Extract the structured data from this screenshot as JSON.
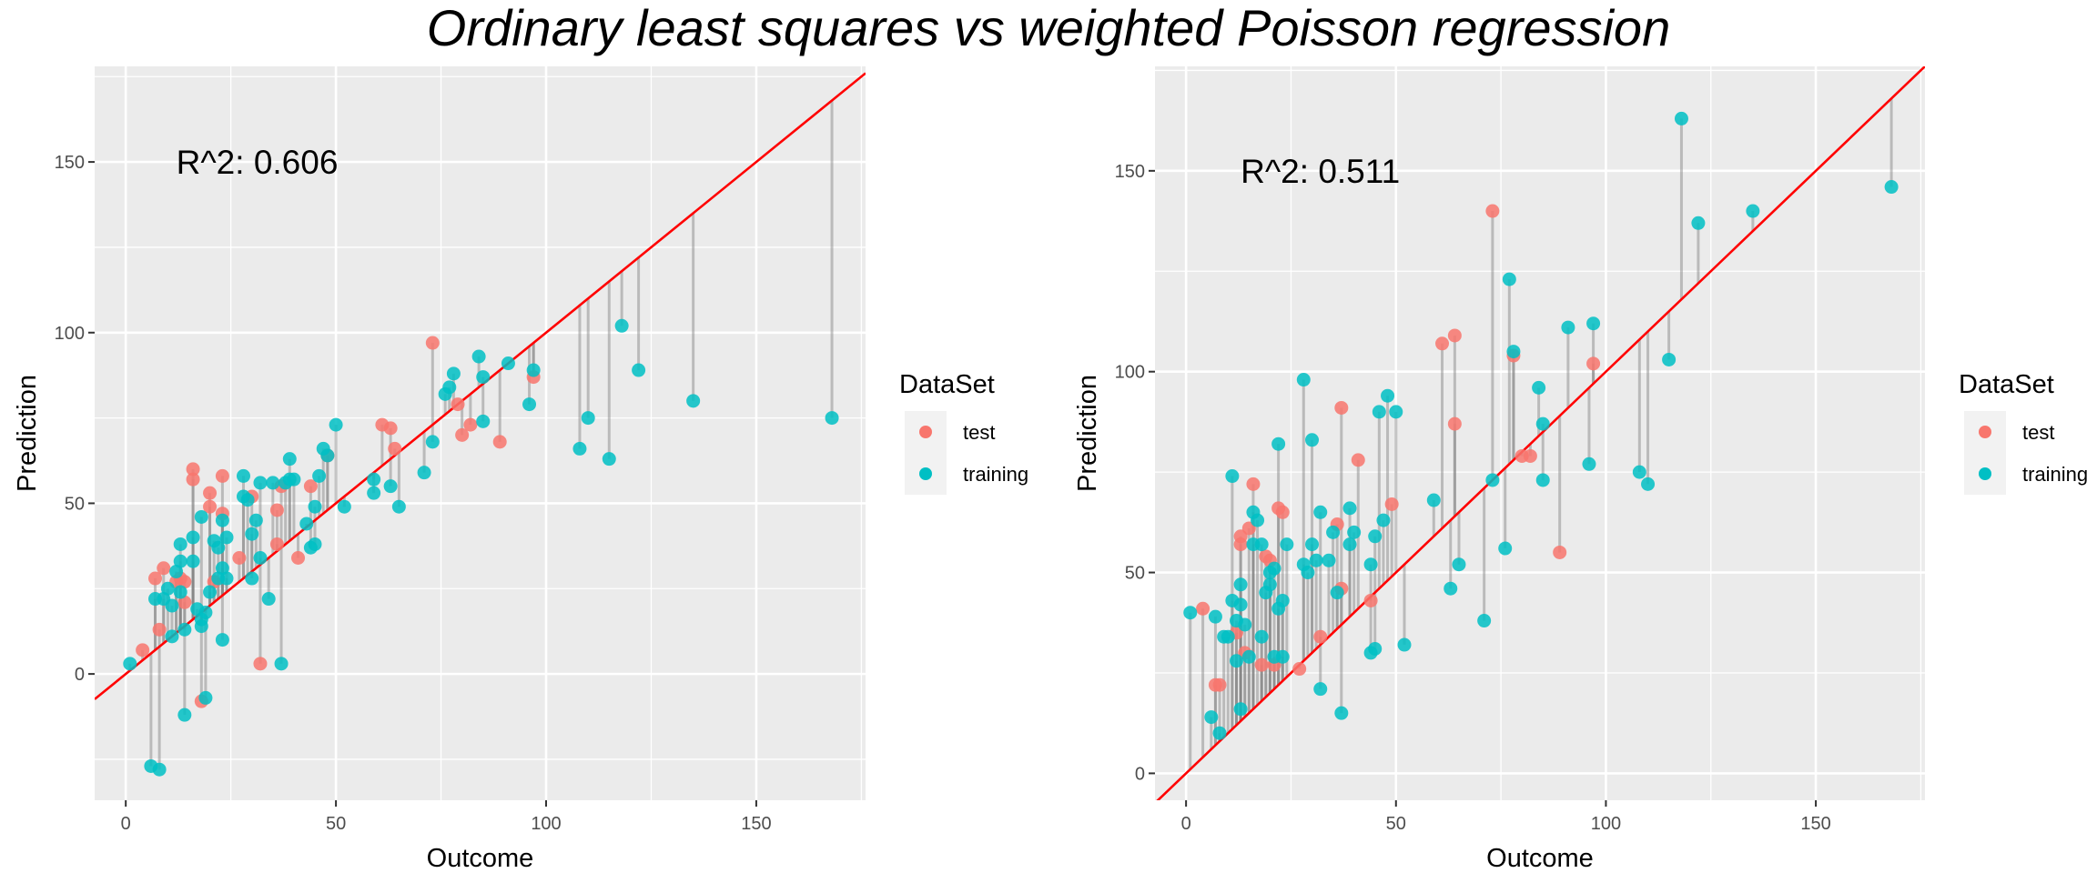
{
  "title": "Ordinary least squares vs weighted Poisson regression",
  "colors": {
    "test": "#F8766D",
    "training": "#00BFC4",
    "fit_line": "#FF0000",
    "residual": "#7f7f7f",
    "panel_bg": "#EBEBEB",
    "grid": "#FFFFFF"
  },
  "chart_data": [
    {
      "type": "scatter",
      "panel": "left",
      "annotation": "R^2: 0.606",
      "annotation_pos": [
        12,
        150
      ],
      "xlabel": "Outcome",
      "ylabel": "Prediction",
      "xlim": [
        -7.4,
        176
      ],
      "ylim": [
        -37,
        178
      ],
      "xticks": [
        0,
        50,
        100,
        150
      ],
      "yticks": [
        0,
        50,
        100,
        150
      ],
      "reference_line": "y = x",
      "grid": true,
      "legend": {
        "title": "DataSet",
        "entries": [
          "test",
          "training"
        ],
        "position": "right"
      },
      "series": [
        {
          "name": "test",
          "points": [
            [
              4,
              7
            ],
            [
              7,
              28
            ],
            [
              8,
              13
            ],
            [
              9,
              31
            ],
            [
              12,
              27
            ],
            [
              13,
              28
            ],
            [
              14,
              21
            ],
            [
              14,
              27
            ],
            [
              16,
              60
            ],
            [
              16,
              57
            ],
            [
              18,
              -8
            ],
            [
              20,
              53
            ],
            [
              20,
              49
            ],
            [
              21,
              27
            ],
            [
              23,
              58
            ],
            [
              23,
              47
            ],
            [
              27,
              34
            ],
            [
              30,
              52
            ],
            [
              32,
              3
            ],
            [
              36,
              48
            ],
            [
              36,
              38
            ],
            [
              37,
              55
            ],
            [
              41,
              34
            ],
            [
              44,
              55
            ],
            [
              48,
              64
            ],
            [
              61,
              73
            ],
            [
              63,
              72
            ],
            [
              64,
              66
            ],
            [
              73,
              97
            ],
            [
              79,
              79
            ],
            [
              80,
              70
            ],
            [
              82,
              73
            ],
            [
              89,
              68
            ],
            [
              97,
              87
            ]
          ]
        },
        {
          "name": "training",
          "points": [
            [
              1,
              3
            ],
            [
              6,
              -27
            ],
            [
              7,
              22
            ],
            [
              8,
              -28
            ],
            [
              9,
              22
            ],
            [
              10,
              25
            ],
            [
              11,
              11
            ],
            [
              11,
              20
            ],
            [
              12,
              30
            ],
            [
              13,
              38
            ],
            [
              13,
              33
            ],
            [
              13,
              24
            ],
            [
              14,
              13
            ],
            [
              14,
              -12
            ],
            [
              16,
              40
            ],
            [
              16,
              33
            ],
            [
              17,
              19
            ],
            [
              18,
              14
            ],
            [
              18,
              16
            ],
            [
              18,
              46
            ],
            [
              19,
              -7
            ],
            [
              19,
              18
            ],
            [
              20,
              24
            ],
            [
              21,
              39
            ],
            [
              22,
              37
            ],
            [
              22,
              28
            ],
            [
              23,
              45
            ],
            [
              23,
              31
            ],
            [
              23,
              10
            ],
            [
              24,
              40
            ],
            [
              24,
              28
            ],
            [
              28,
              58
            ],
            [
              28,
              52
            ],
            [
              29,
              51
            ],
            [
              30,
              28
            ],
            [
              30,
              41
            ],
            [
              31,
              45
            ],
            [
              32,
              34
            ],
            [
              32,
              56
            ],
            [
              34,
              22
            ],
            [
              35,
              56
            ],
            [
              37,
              3
            ],
            [
              38,
              56
            ],
            [
              39,
              57
            ],
            [
              39,
              63
            ],
            [
              40,
              57
            ],
            [
              43,
              44
            ],
            [
              44,
              37
            ],
            [
              45,
              38
            ],
            [
              45,
              49
            ],
            [
              46,
              58
            ],
            [
              47,
              66
            ],
            [
              48,
              64
            ],
            [
              50,
              73
            ],
            [
              52,
              49
            ],
            [
              59,
              57
            ],
            [
              59,
              53
            ],
            [
              63,
              55
            ],
            [
              65,
              49
            ],
            [
              71,
              59
            ],
            [
              73,
              68
            ],
            [
              76,
              82
            ],
            [
              77,
              84
            ],
            [
              78,
              88
            ],
            [
              84,
              93
            ],
            [
              85,
              87
            ],
            [
              85,
              74
            ],
            [
              91,
              91
            ],
            [
              96,
              79
            ],
            [
              97,
              89
            ],
            [
              108,
              66
            ],
            [
              110,
              75
            ],
            [
              115,
              63
            ],
            [
              118,
              102
            ],
            [
              122,
              89
            ],
            [
              135,
              80
            ],
            [
              168,
              75
            ]
          ]
        }
      ]
    },
    {
      "type": "scatter",
      "panel": "right",
      "annotation": "R^2: 0.511",
      "annotation_pos": [
        13,
        150
      ],
      "xlabel": "Outcome",
      "ylabel": "Prediction",
      "xlim": [
        -7.4,
        176
      ],
      "ylim": [
        -6.7,
        176
      ],
      "xticks": [
        0,
        50,
        100,
        150
      ],
      "yticks": [
        0,
        50,
        100,
        150
      ],
      "reference_line": "y = x",
      "grid": true,
      "legend": {
        "title": "DataSet",
        "entries": [
          "test",
          "training"
        ],
        "position": "right"
      },
      "series": [
        {
          "name": "test",
          "points": [
            [
              4,
              41
            ],
            [
              7,
              22
            ],
            [
              8,
              22
            ],
            [
              12,
              35
            ],
            [
              13,
              59
            ],
            [
              13,
              57
            ],
            [
              14,
              30
            ],
            [
              15,
              61
            ],
            [
              16,
              72
            ],
            [
              18,
              27
            ],
            [
              19,
              54
            ],
            [
              20,
              53
            ],
            [
              21,
              27
            ],
            [
              22,
              66
            ],
            [
              23,
              65
            ],
            [
              27,
              26
            ],
            [
              32,
              34
            ],
            [
              36,
              62
            ],
            [
              37,
              46
            ],
            [
              37,
              91
            ],
            [
              41,
              78
            ],
            [
              44,
              43
            ],
            [
              49,
              67
            ],
            [
              61,
              107
            ],
            [
              64,
              109
            ],
            [
              64,
              87
            ],
            [
              73,
              140
            ],
            [
              78,
              104
            ],
            [
              80,
              79
            ],
            [
              82,
              79
            ],
            [
              89,
              55
            ],
            [
              97,
              102
            ]
          ]
        },
        {
          "name": "training",
          "points": [
            [
              1,
              40
            ],
            [
              6,
              14
            ],
            [
              7,
              39
            ],
            [
              8,
              10
            ],
            [
              9,
              34
            ],
            [
              10,
              34
            ],
            [
              11,
              74
            ],
            [
              11,
              43
            ],
            [
              12,
              28
            ],
            [
              12,
              38
            ],
            [
              13,
              47
            ],
            [
              13,
              42
            ],
            [
              13,
              16
            ],
            [
              14,
              37
            ],
            [
              15,
              29
            ],
            [
              16,
              65
            ],
            [
              16,
              57
            ],
            [
              17,
              63
            ],
            [
              18,
              57
            ],
            [
              18,
              34
            ],
            [
              19,
              45
            ],
            [
              20,
              47
            ],
            [
              20,
              50
            ],
            [
              21,
              51
            ],
            [
              21,
              29
            ],
            [
              22,
              41
            ],
            [
              22,
              82
            ],
            [
              23,
              43
            ],
            [
              23,
              29
            ],
            [
              24,
              57
            ],
            [
              28,
              98
            ],
            [
              28,
              52
            ],
            [
              29,
              50
            ],
            [
              30,
              83
            ],
            [
              30,
              57
            ],
            [
              31,
              53
            ],
            [
              32,
              21
            ],
            [
              32,
              65
            ],
            [
              34,
              53
            ],
            [
              35,
              60
            ],
            [
              36,
              45
            ],
            [
              37,
              15
            ],
            [
              39,
              57
            ],
            [
              39,
              66
            ],
            [
              40,
              60
            ],
            [
              44,
              52
            ],
            [
              44,
              30
            ],
            [
              45,
              31
            ],
            [
              45,
              59
            ],
            [
              46,
              90
            ],
            [
              47,
              63
            ],
            [
              48,
              94
            ],
            [
              50,
              90
            ],
            [
              52,
              32
            ],
            [
              59,
              68
            ],
            [
              63,
              46
            ],
            [
              65,
              52
            ],
            [
              71,
              38
            ],
            [
              73,
              73
            ],
            [
              76,
              56
            ],
            [
              77,
              123
            ],
            [
              78,
              105
            ],
            [
              84,
              96
            ],
            [
              85,
              87
            ],
            [
              85,
              73
            ],
            [
              91,
              111
            ],
            [
              96,
              77
            ],
            [
              97,
              112
            ],
            [
              108,
              75
            ],
            [
              110,
              72
            ],
            [
              115,
              103
            ],
            [
              118,
              163
            ],
            [
              122,
              137
            ],
            [
              135,
              140
            ],
            [
              168,
              146
            ]
          ]
        }
      ]
    }
  ]
}
